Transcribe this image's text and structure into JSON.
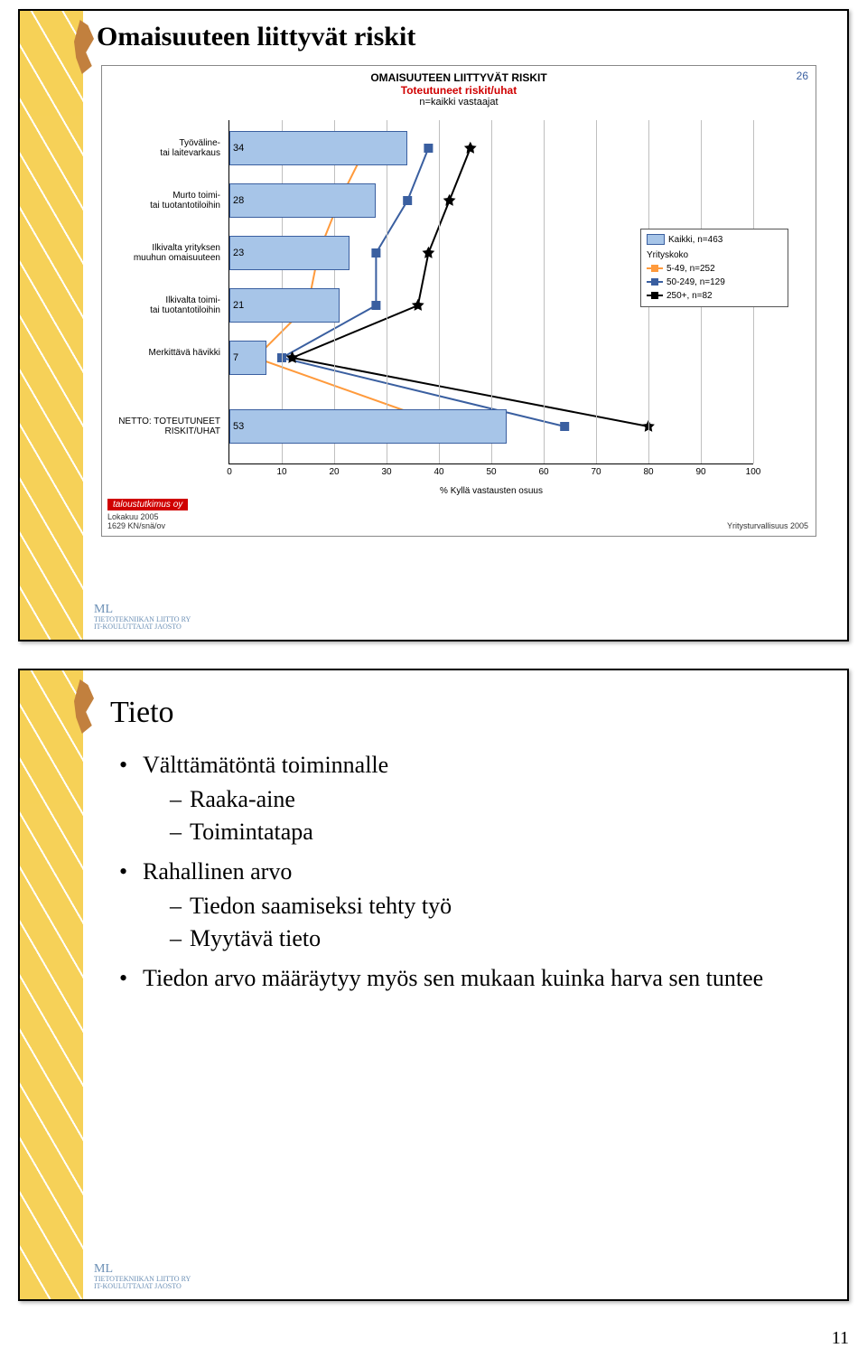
{
  "page_number": "11",
  "slide1": {
    "title": "Omaisuuteen liittyvät riskit",
    "chart": {
      "header_line1": "OMAISUUTEEN LIITTYVÄT RISKIT",
      "header_line2": "Toteutuneet riskit/uhat",
      "header_line3": "n=kaikki vastaajat",
      "page_num": "26",
      "type": "bar",
      "xlim": [
        0,
        100
      ],
      "xtick_step": 10,
      "x_title": "% Kyllä vastausten osuus",
      "bar_color": "#a7c5e8",
      "bar_border": "#3a5fa0",
      "grid_color": "#bfbfbf",
      "background_color": "#ffffff",
      "categories": [
        {
          "label_html": "Työväline-<br>tai laitevarkaus",
          "value": 34,
          "y": 12
        },
        {
          "label_html": "Murto toimi-<br>tai tuotantotiloihin",
          "value": 28,
          "y": 70
        },
        {
          "label_html": "Ilkivalta yrityksen<br>muuhun omaisuuteen",
          "value": 23,
          "y": 128
        },
        {
          "label_html": "Ilkivalta toimi-<br>tai tuotantotiloihin",
          "value": 21,
          "y": 186
        },
        {
          "label_html": "Merkittävä hävikki",
          "value": 7,
          "y": 244
        },
        {
          "label_html": "NETTO: TOTEUTUNEET<br>RISKIT/UHAT",
          "value": 53,
          "y": 320
        }
      ],
      "series": [
        {
          "name": "5-49, n=252",
          "color": "#ff9a3c",
          "marker": "triangle",
          "points": [
            [
              26,
              31
            ],
            [
              21,
              89
            ],
            [
              17,
              147
            ],
            [
              15,
              205
            ],
            [
              5,
              263
            ],
            [
              42,
              339
            ]
          ]
        },
        {
          "name": "50-249, n=129",
          "color": "#3a5fa0",
          "marker": "square",
          "points": [
            [
              38,
              31
            ],
            [
              34,
              89
            ],
            [
              28,
              147
            ],
            [
              28,
              205
            ],
            [
              10,
              263
            ],
            [
              64,
              339
            ]
          ]
        },
        {
          "name": "250+, n=82",
          "color": "#000000",
          "marker": "star",
          "points": [
            [
              46,
              31
            ],
            [
              42,
              89
            ],
            [
              38,
              147
            ],
            [
              36,
              205
            ],
            [
              12,
              263
            ],
            [
              80,
              339
            ]
          ]
        }
      ],
      "legend": {
        "kaikki": "Kaikki, n=463",
        "group_title": "Yrityskoko",
        "s1": "5-49, n=252",
        "s2": "50-249, n=129",
        "s3": "250+, n=82"
      },
      "footer_brand": "taloustutkimus oy",
      "footer_line1": "Lokakuu 2005",
      "footer_line2": "1629 KN/snä/ov",
      "footer_right": "Yritysturvallisuus 2005"
    }
  },
  "slide2": {
    "title": "Tieto",
    "bullets": [
      {
        "text": "Välttämätöntä toiminnalle",
        "sub": [
          "Raaka-aine",
          "Toimintatapa"
        ]
      },
      {
        "text": "Rahallinen arvo",
        "sub": [
          "Tiedon saamiseksi tehty työ",
          "Myytävä tieto"
        ]
      },
      {
        "text": "Tiedon arvo määräytyy myös sen mukaan kuinka harva sen tuntee",
        "sub": []
      }
    ]
  },
  "footer_logo": {
    "ml": "ML",
    "small1": "TIETOTEKNIIKAN LIITTO RY",
    "small2": "IT-KOULUTTAJAT JAOSTO"
  }
}
